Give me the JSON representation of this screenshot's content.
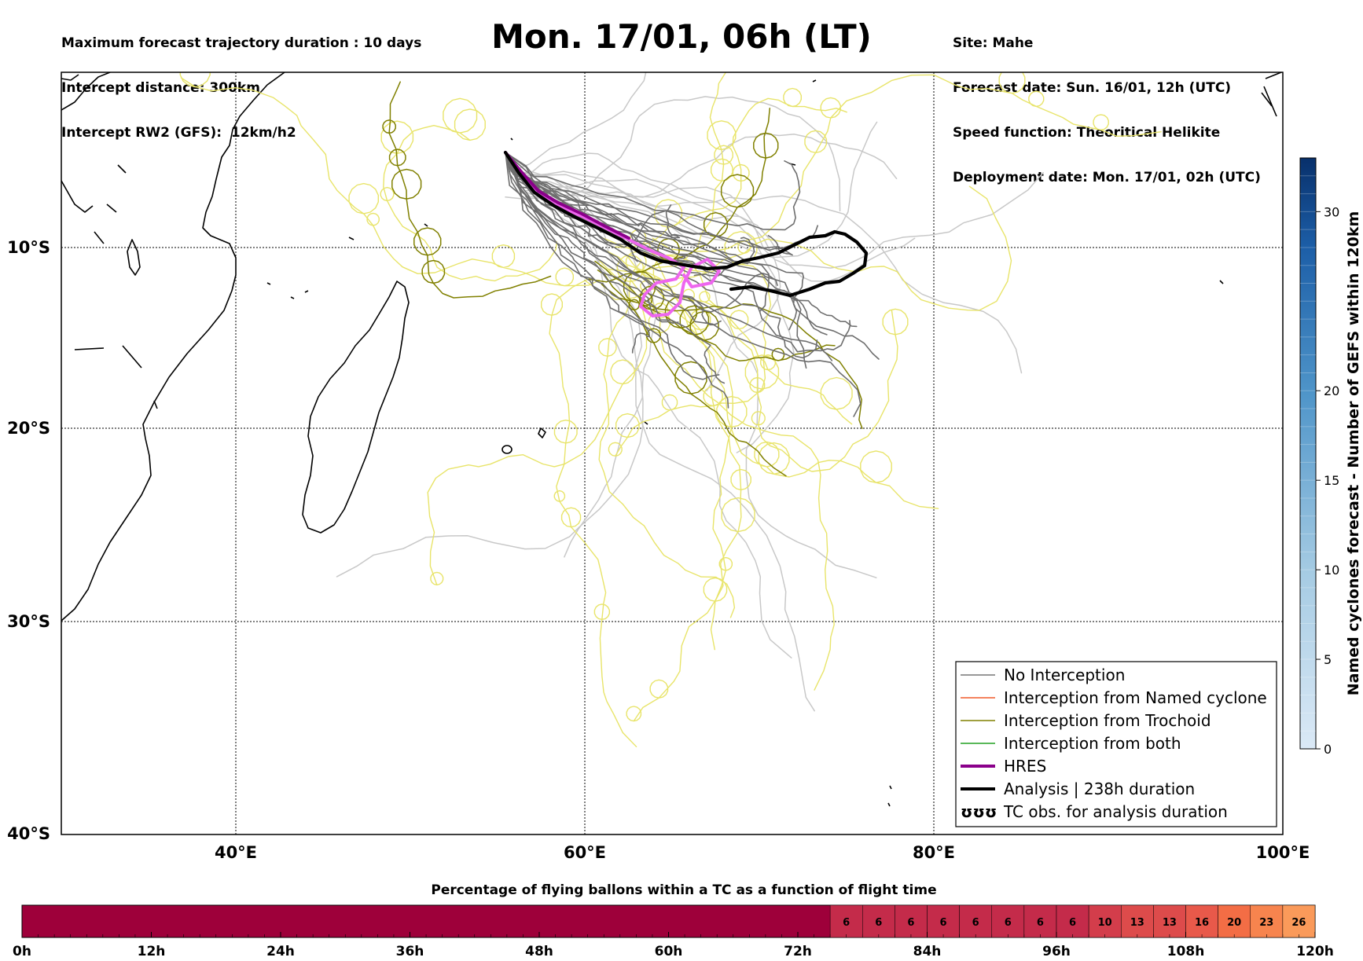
{
  "header": {
    "left": [
      "Maximum forecast trajectory duration : 10 days",
      "Intercept distance: 300km",
      "Intercept RW2 (GFS):  12km/h2"
    ],
    "title": "Mon. 17/01, 06h (LT)",
    "right": [
      "Site: Mahe",
      "Forecast date: Sun. 16/01, 12h (UTC)",
      "Speed function: Theoritical Helikite",
      "Deployment date: Mon. 17/01, 02h (UTC)"
    ]
  },
  "map": {
    "lon_range": [
      30,
      100
    ],
    "lat_range": [
      -40,
      0
    ],
    "lat_labels": [
      "10°S",
      "20°S",
      "30°S",
      "40°S"
    ],
    "lon_labels": [
      "40°E",
      "60°E",
      "80°E",
      "100°E"
    ],
    "gridlines": true,
    "land_color": "#ffffff",
    "coast_color": "#000000"
  },
  "legend": {
    "placement": "bottom-right",
    "items": [
      {
        "label": "No Interception",
        "color": "#777777",
        "width": 1.5,
        "kind": "line"
      },
      {
        "label": "Interception from Named cyclone",
        "color": "#f05a28",
        "width": 1.5,
        "kind": "line"
      },
      {
        "label": "Interception from Trochoid",
        "color": "#808000",
        "width": 1.5,
        "kind": "line"
      },
      {
        "label": "Interception from both",
        "color": "#22a022",
        "width": 1.5,
        "kind": "line"
      },
      {
        "label": "HRES",
        "color": "#8b008b",
        "width": 4,
        "kind": "line"
      },
      {
        "label": "Analysis | 238h duration",
        "color": "#000000",
        "width": 4,
        "kind": "line"
      },
      {
        "label": "TC obs. for analysis duration",
        "color": "#000000",
        "kind": "symbol",
        "symbol": "ʊʊʊ"
      }
    ]
  },
  "colorbar_right": {
    "label": "Named cyclones forecast - Number of GEFS within 120km",
    "min": 0,
    "max": 33,
    "ticks": [
      0,
      5,
      10,
      15,
      20,
      30
    ],
    "color_low": "#dbe9f6",
    "color_high": "#08306b"
  },
  "bottom_bar": {
    "title": "Percentage of flying ballons within a TC as a function of flight time",
    "time_labels": [
      "0h",
      "12h",
      "24h",
      "36h",
      "48h",
      "60h",
      "72h",
      "84h",
      "96h",
      "108h",
      "120h"
    ],
    "max_hours": 120,
    "base_color": "#9e003a",
    "empty_until_hours": 75,
    "boxes": [
      {
        "value": "6",
        "color": "#c42b4a"
      },
      {
        "value": "6",
        "color": "#c42b4a"
      },
      {
        "value": "6",
        "color": "#c42b4a"
      },
      {
        "value": "6",
        "color": "#c42b4a"
      },
      {
        "value": "6",
        "color": "#c42b4a"
      },
      {
        "value": "6",
        "color": "#c42b4a"
      },
      {
        "value": "6",
        "color": "#c42b4a"
      },
      {
        "value": "6",
        "color": "#c42b4a"
      },
      {
        "value": "10",
        "color": "#d33d4b"
      },
      {
        "value": "13",
        "color": "#dd4b4b"
      },
      {
        "value": "13",
        "color": "#dd4b4b"
      },
      {
        "value": "16",
        "color": "#e8594a"
      },
      {
        "value": "20",
        "color": "#f36d45"
      },
      {
        "value": "23",
        "color": "#f7844e"
      },
      {
        "value": "26",
        "color": "#fa9a5a"
      }
    ]
  }
}
